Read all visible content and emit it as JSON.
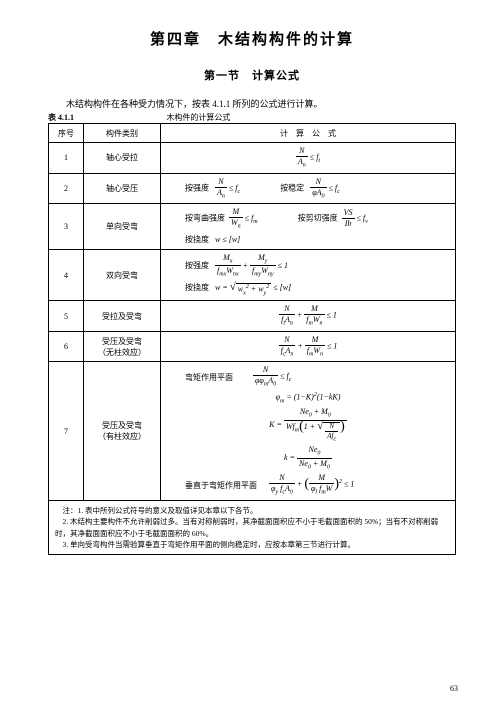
{
  "chapter_title": "第四章　木结构构件的计算",
  "section_title": "第一节　计算公式",
  "intro_text": "木结构构件在各种受力情况下，按表 4.1.1 所列的公式进行计算。",
  "table_caption_label": "表 4.1.1",
  "table_caption_title": "木构件的计算公式",
  "headers": {
    "idx": "序号",
    "type": "构件类别",
    "formula": "计　算　公　式"
  },
  "rows": {
    "r1": {
      "idx": "1",
      "type": "轴心受拉"
    },
    "r2": {
      "idx": "2",
      "type": "轴心受压",
      "lab1": "按强度",
      "lab2": "按稳定"
    },
    "r3": {
      "idx": "3",
      "type": "单向受弯",
      "lab1": "按弯曲强度",
      "lab2": "按剪切强度",
      "lab3": "按挠度"
    },
    "r4": {
      "idx": "4",
      "type": "双向受弯",
      "lab1": "按强度",
      "lab2": "按挠度"
    },
    "r5": {
      "idx": "5",
      "type": "受拉及受弯"
    },
    "r6": {
      "idx": "6",
      "type1": "受压及受弯",
      "type2": "（无柱效应）"
    },
    "r7": {
      "idx": "7",
      "type1": "受压及受弯",
      "type2": "（有柱效应）",
      "lab1": "弯矩作用平面",
      "lab2": "垂直于弯矩作用平面"
    }
  },
  "notes": {
    "n1": "注：1. 表中所列公式符号的意义及取值详见本章以下各节。",
    "n2": "2. 木结构主要构件不允许削弱过多。当有对称削弱时，其净截面面积应不小于毛截面面积的 50%；当有不对称削弱时，其净截面面积应不小于毛截面面积的 60%。",
    "n3": "3. 单向受弯构件当需验算垂直于弯矩作用平面的侧向稳定时，应按本章第三节进行计算。"
  },
  "page_number": "63",
  "colors": {
    "text": "#000000",
    "bg": "#ffffff",
    "border": "#000000"
  }
}
